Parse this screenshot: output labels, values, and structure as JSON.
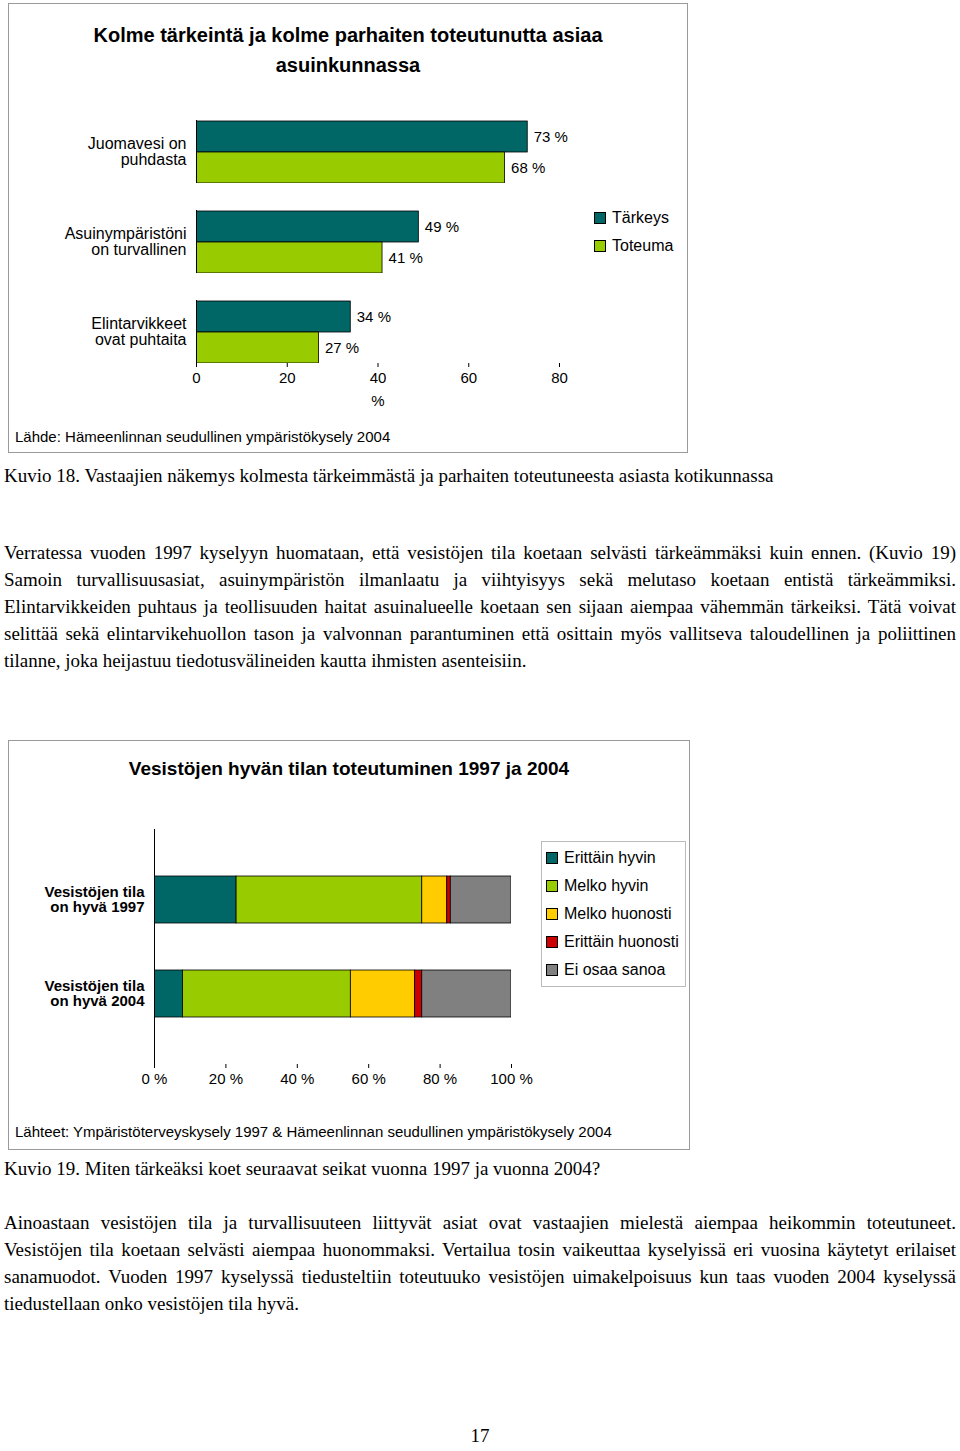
{
  "chart_data": [
    {
      "type": "bar",
      "orientation": "horizontal",
      "stacked": false,
      "title": "Kolme tärkeintä ja kolme parhaiten toteutunutta asiaa asuinkunnassa",
      "categories": [
        "Juomavesi on\npuhdasta",
        "Asuinympäristöni\non turvallinen",
        "Elintarvikkeet\novat puhtaita"
      ],
      "series": [
        {
          "name": "Tärkeys",
          "color": "#006666",
          "values": [
            73,
            49,
            34
          ],
          "value_labels": [
            "73 %",
            "49 %",
            "34 %"
          ]
        },
        {
          "name": "Toteuma",
          "color": "#99cc00",
          "values": [
            68,
            41,
            27
          ],
          "value_labels": [
            "68 %",
            "41 %",
            "27 %"
          ]
        }
      ],
      "xlim": [
        0,
        80
      ],
      "xticks": [
        0,
        20,
        40,
        60,
        80
      ],
      "xlabel": "%",
      "data_labels": true,
      "grid": false,
      "legend": "right",
      "source": "Lähde: Hämeenlinnan seudullinen ympäristökysely 2004"
    },
    {
      "type": "bar",
      "orientation": "horizontal",
      "stacked": true,
      "title": "Vesistöjen hyvän tilan toteutuminen 1997 ja 2004",
      "categories": [
        "Vesistöjen tila\non hyvä 1997",
        "Vesistöjen tila\non hyvä 2004"
      ],
      "series": [
        {
          "name": "Erittäin hyvin",
          "color": "#006666",
          "values": [
            23,
            8
          ]
        },
        {
          "name": "Melko hyvin",
          "color": "#99cc00",
          "values": [
            52,
            47
          ]
        },
        {
          "name": "Melko huonosti",
          "color": "#ffcc00",
          "values": [
            7,
            18
          ]
        },
        {
          "name": "Erittäin huonosti",
          "color": "#cc0000",
          "values": [
            1,
            2
          ]
        },
        {
          "name": "Ei osaa sanoa",
          "color": "#808080",
          "values": [
            17,
            25
          ]
        }
      ],
      "xlim": [
        0,
        100
      ],
      "xticks": [
        {
          "value": 0,
          "label": "0 %"
        },
        {
          "value": 20,
          "label": "20 %"
        },
        {
          "value": 40,
          "label": "40 %"
        },
        {
          "value": 60,
          "label": "60 %"
        },
        {
          "value": 80,
          "label": "80 %"
        },
        {
          "value": 100,
          "label": "100 %"
        }
      ],
      "data_labels": false,
      "grid": false,
      "legend": "right",
      "source": "Lähteet: Ympäristöterveyskysely 1997 & Hämeenlinnan seudullinen ympäristökysely 2004"
    }
  ],
  "document": {
    "caption_1": "Kuvio 18. Vastaajien näkemys kolmesta tärkeimmästä ja parhaiten toteutuneesta asiasta kotikunnassa",
    "paragraph_1": "Verratessa vuoden 1997 kyselyyn huomataan, että vesistöjen tila koetaan selvästi tärkeämmäksi kuin ennen. (Kuvio 19) Samoin turvallisuusasiat, asuinympäristön ilmanlaatu ja viihtyisyys sekä melutaso koetaan entistä tärkeämmiksi. Elintarvikkeiden puhtaus ja teollisuuden haitat asuinalueelle koetaan sen sijaan aiempaa vähemmän tärkeiksi. Tätä voivat selittää sekä elintarvikehuollon tason ja valvonnan parantuminen että osittain myös vallitseva taloudellinen ja poliittinen tilanne, joka heijastuu tiedotusvälineiden kautta ihmisten asenteisiin.",
    "caption_2": "Kuvio 19. Miten tärkeäksi koet seuraavat seikat vuonna 1997 ja vuonna 2004?",
    "paragraph_2": "Ainoastaan vesistöjen tila ja turvallisuuteen liittyvät asiat ovat vastaajien mielestä aiempaa heikommin toteutuneet. Vesistöjen tila koetaan selvästi aiempaa huonommaksi. Vertailua tosin vaikeuttaa kyselyissä eri vuosina käytetyt erilaiset sanamuodot. Vuoden 1997 kyselyssä tiedusteltiin toteutuuko vesistöjen uimakelpoisuus kun taas vuoden 2004 kyselyssä tiedustellaan onko vesistöjen tila hyvä.",
    "page_number": "17"
  }
}
